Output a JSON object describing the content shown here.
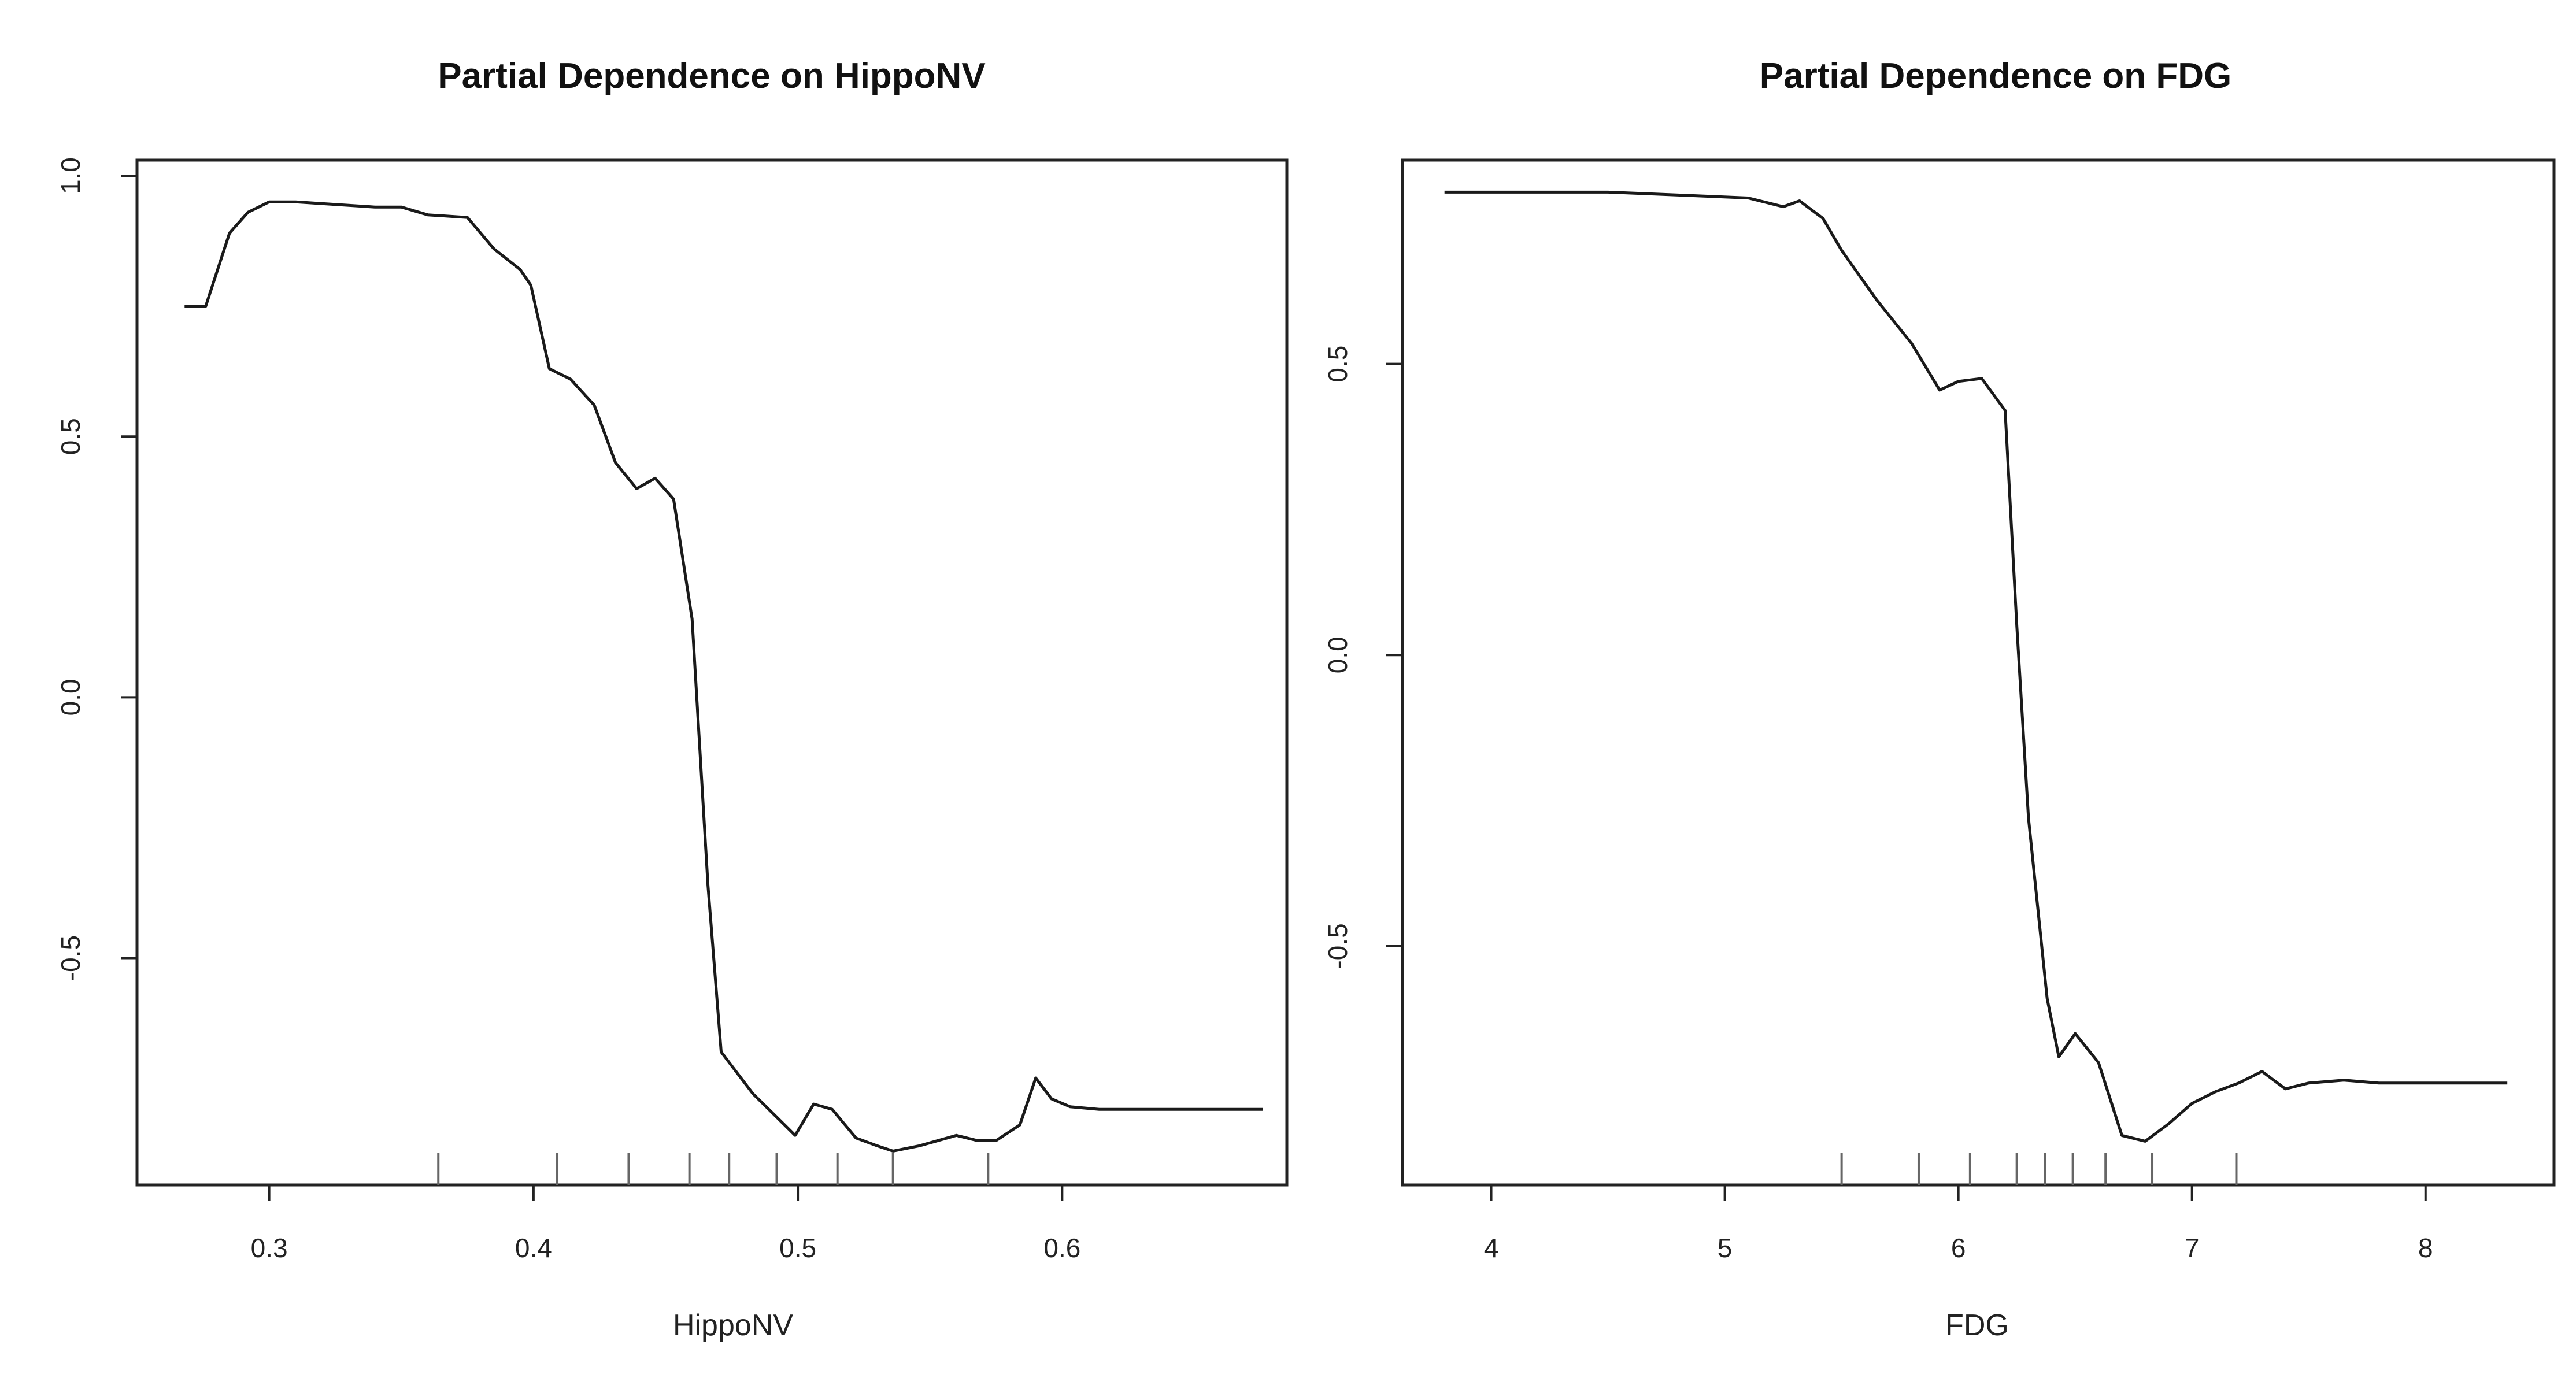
{
  "chart_data": [
    {
      "type": "line",
      "title": "Partial Dependence on HippoNV",
      "xlabel": "HippoNV",
      "ylabel": "",
      "xlim": [
        0.25,
        0.685
      ],
      "ylim": [
        -0.935,
        1.03
      ],
      "xticks": [
        0.3,
        0.4,
        0.5,
        0.6
      ],
      "xtick_labels": [
        "0.3",
        "0.4",
        "0.5",
        "0.6"
      ],
      "yticks": [
        -0.5,
        0.0,
        0.5,
        1.0
      ],
      "ytick_labels": [
        "-0.5",
        "0.0",
        "0.5",
        "1.0"
      ],
      "grid": false,
      "rug": [
        0.364,
        0.409,
        0.436,
        0.459,
        0.474,
        0.492,
        0.515,
        0.536,
        0.572
      ],
      "series": [
        {
          "x": [
            0.268,
            0.276,
            0.285,
            0.292,
            0.3,
            0.31,
            0.325,
            0.34,
            0.35,
            0.36,
            0.375,
            0.385,
            0.395,
            0.399,
            0.406,
            0.414,
            0.423,
            0.431,
            0.439,
            0.446,
            0.453,
            0.46,
            0.466,
            0.471,
            0.477,
            0.483,
            0.491,
            0.499,
            0.506,
            0.513,
            0.522,
            0.53,
            0.536,
            0.546,
            0.56,
            0.568,
            0.575,
            0.584,
            0.59,
            0.596,
            0.603,
            0.614,
            0.64,
            0.66,
            0.676
          ],
          "y": [
            0.75,
            0.75,
            0.89,
            0.93,
            0.95,
            0.95,
            0.945,
            0.94,
            0.94,
            0.925,
            0.92,
            0.86,
            0.82,
            0.79,
            0.63,
            0.61,
            0.56,
            0.45,
            0.4,
            0.42,
            0.38,
            0.15,
            -0.36,
            -0.68,
            -0.72,
            -0.76,
            -0.8,
            -0.84,
            -0.78,
            -0.79,
            -0.845,
            -0.86,
            -0.87,
            -0.86,
            -0.84,
            -0.85,
            -0.85,
            -0.82,
            -0.73,
            -0.77,
            -0.785,
            -0.79,
            -0.79,
            -0.79,
            -0.79
          ]
        }
      ]
    },
    {
      "type": "line",
      "title": "Partial Dependence on FDG",
      "xlabel": "FDG",
      "ylabel": "",
      "xlim": [
        3.62,
        8.55
      ],
      "ylim": [
        -0.91,
        0.85
      ],
      "xticks": [
        4,
        5,
        6,
        7,
        8
      ],
      "xtick_labels": [
        "4",
        "5",
        "6",
        "7",
        "8"
      ],
      "yticks": [
        -0.5,
        0.0,
        0.5
      ],
      "ytick_labels": [
        "-0.5",
        "0.0",
        "0.5"
      ],
      "grid": false,
      "rug": [
        5.5,
        5.83,
        6.05,
        6.25,
        6.37,
        6.49,
        6.63,
        6.83,
        7.19
      ],
      "series": [
        {
          "x": [
            3.8,
            4.5,
            4.8,
            5.1,
            5.25,
            5.32,
            5.42,
            5.5,
            5.65,
            5.8,
            5.92,
            6.0,
            6.1,
            6.2,
            6.25,
            6.3,
            6.38,
            6.43,
            6.5,
            6.6,
            6.7,
            6.8,
            6.9,
            7.0,
            7.1,
            7.2,
            7.3,
            7.4,
            7.5,
            7.65,
            7.8,
            8.1,
            8.35
          ],
          "y": [
            0.795,
            0.795,
            0.79,
            0.785,
            0.77,
            0.78,
            0.75,
            0.695,
            0.61,
            0.535,
            0.455,
            0.47,
            0.475,
            0.42,
            0.05,
            -0.28,
            -0.59,
            -0.69,
            -0.65,
            -0.7,
            -0.825,
            -0.835,
            -0.805,
            -0.77,
            -0.75,
            -0.735,
            -0.715,
            -0.745,
            -0.735,
            -0.73,
            -0.735,
            -0.735,
            -0.735
          ]
        }
      ]
    }
  ]
}
